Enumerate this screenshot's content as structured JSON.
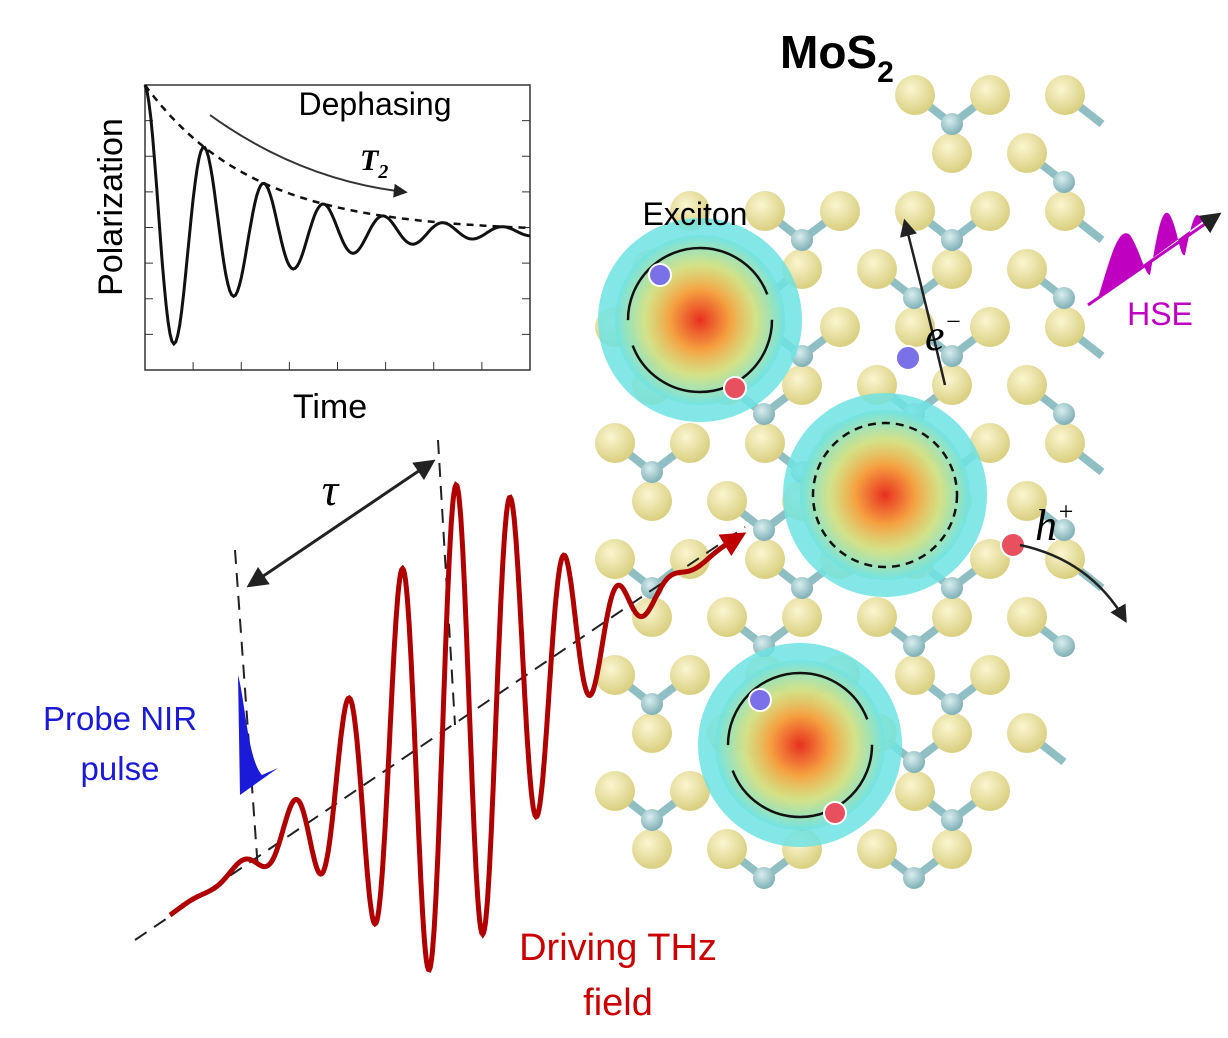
{
  "title": {
    "main": "MoS",
    "sub": "2"
  },
  "inset": {
    "y_label": "Polarization",
    "x_label": "Time",
    "annotation": "Dephasing",
    "time_constant": {
      "main": "T",
      "sub": "2"
    }
  },
  "labels": {
    "exciton": "Exciton",
    "electron": {
      "main": "e",
      "sup": "−"
    },
    "hole": {
      "main": "h",
      "sup": "+"
    },
    "emission": "HSE",
    "delay": "τ",
    "probe": [
      "Probe NIR",
      "pulse"
    ],
    "drive": [
      "Driving THz",
      "field"
    ]
  }
}
